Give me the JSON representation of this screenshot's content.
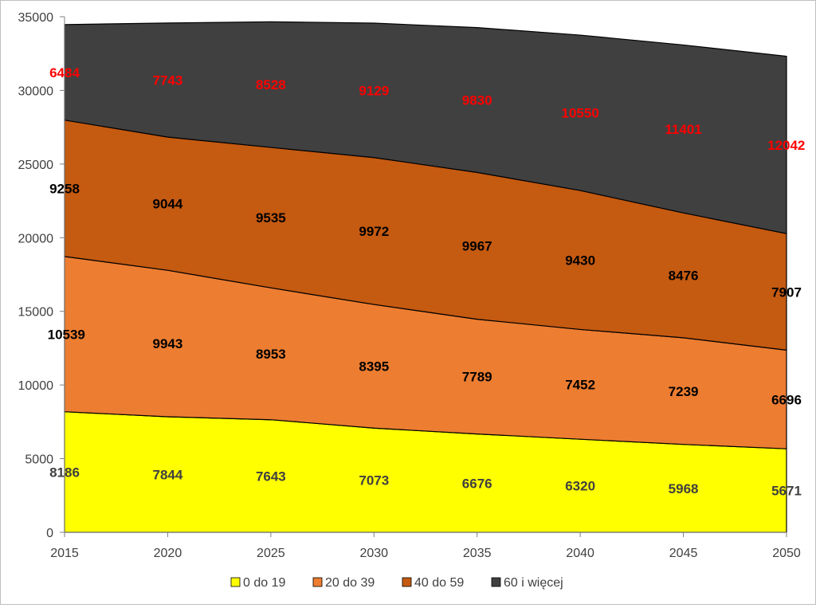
{
  "chart_data": {
    "type": "area",
    "stacked": true,
    "categories": [
      "2015",
      "2020",
      "2025",
      "2030",
      "2035",
      "2040",
      "2045",
      "2050"
    ],
    "ylim": [
      0,
      35000
    ],
    "yticks": [
      0,
      5000,
      10000,
      15000,
      20000,
      25000,
      30000,
      35000
    ],
    "grid": false,
    "legend": "bottom",
    "series": [
      {
        "name": "0 do 19",
        "color": "#ffff00",
        "label_color": "#404040",
        "values": [
          8186,
          7844,
          7643,
          7073,
          6676,
          6320,
          5968,
          5671
        ]
      },
      {
        "name": "20 do 39",
        "color": "#ed7d31",
        "label_color": "#000000",
        "values": [
          10539,
          9943,
          8953,
          8395,
          7789,
          7452,
          7239,
          6696
        ]
      },
      {
        "name": "40 do 59",
        "color": "#c55a11",
        "label_color": "#000000",
        "values": [
          9258,
          9044,
          9535,
          9972,
          9967,
          9430,
          8476,
          7907
        ]
      },
      {
        "name": "60 i więcej",
        "color": "#404040",
        "label_color": "#ff0000",
        "values": [
          6484,
          7743,
          8528,
          9129,
          9830,
          10550,
          11401,
          12042
        ]
      }
    ]
  }
}
